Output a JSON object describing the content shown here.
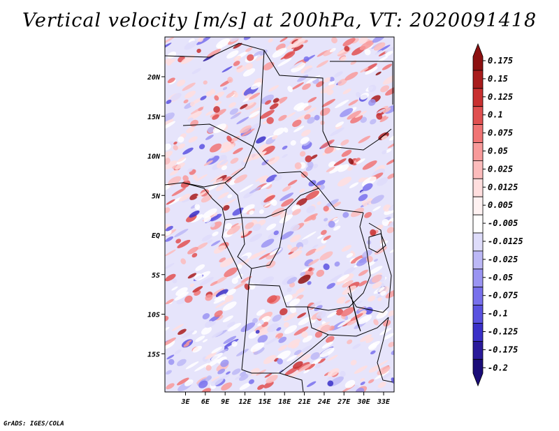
{
  "title": "Vertical velocity [m/s] at 200hPa, VT: 2020091418",
  "footer": "GrADS: IGES/COLA",
  "map": {
    "lat_labels": [
      "20N",
      "15N",
      "10N",
      "5N",
      "EQ",
      "5S",
      "10S",
      "15S"
    ],
    "lon_labels": [
      "3E",
      "6E",
      "9E",
      "12E",
      "15E",
      "18E",
      "21E",
      "24E",
      "27E",
      "30E",
      "33E"
    ],
    "field_colors": [
      "#2a1a9a",
      "#3a30c8",
      "#5a52e0",
      "#7870ec",
      "#9a94f2",
      "#bcb8f6",
      "#dedcfa",
      "#ffffff",
      "#ffdede",
      "#fcbcbc",
      "#f89a9a",
      "#f07474",
      "#e05050",
      "#c83030",
      "#a81c1c",
      "#8c1010"
    ],
    "border_color": "#000000"
  },
  "colorbar": {
    "labels": [
      "0.175",
      "0.15",
      "0.125",
      "0.1",
      "0.075",
      "0.05",
      "0.025",
      "0.0125",
      "0.005",
      "-0.005",
      "-0.0125",
      "-0.025",
      "-0.05",
      "-0.075",
      "-0.1",
      "-0.125",
      "-0.175",
      "-0.2"
    ],
    "colors": [
      "#8c1010",
      "#a81c1c",
      "#c83030",
      "#e05050",
      "#f07474",
      "#f89a9a",
      "#fcbcbc",
      "#ffdede",
      "#fff2f2",
      "#ffffff",
      "#dedcfa",
      "#bcb8f6",
      "#9a94f2",
      "#7870ec",
      "#5a52e0",
      "#3a30c8",
      "#2a1a9a",
      "#1a0c78"
    ]
  }
}
